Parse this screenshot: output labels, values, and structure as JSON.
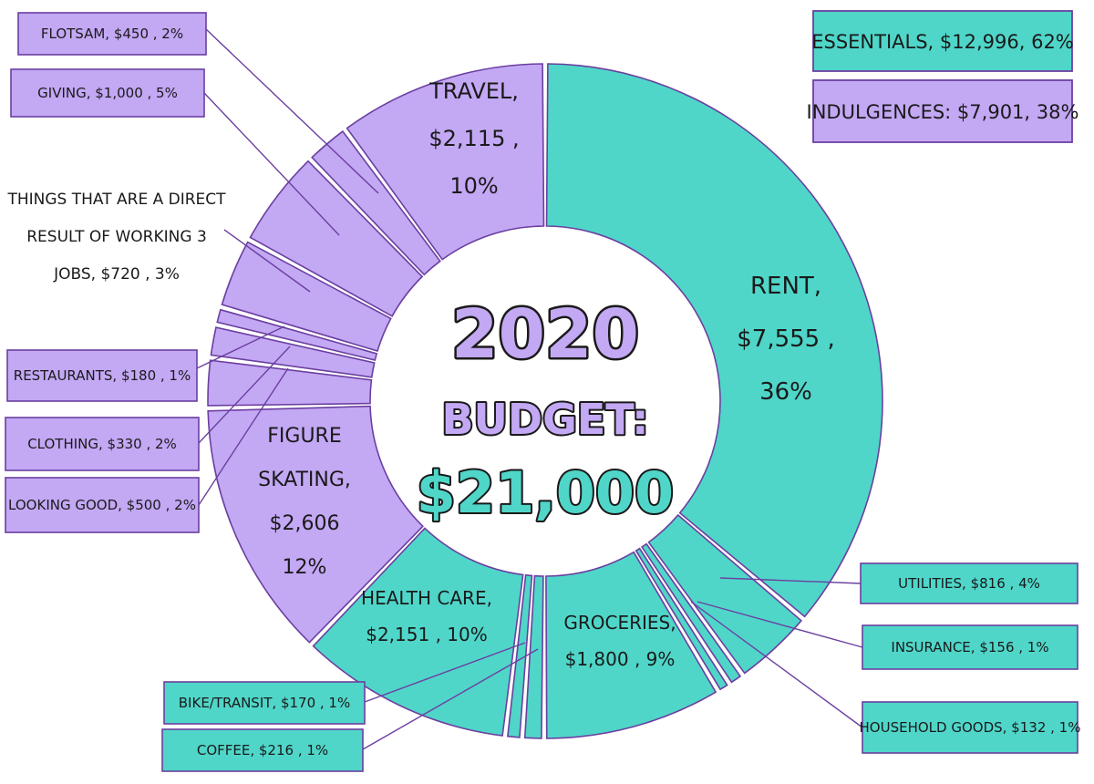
{
  "chart_data": {
    "type": "pie",
    "center_title": {
      "line1": "2020",
      "line2": "BUDGET:",
      "line3": "$21,000"
    },
    "summary": [
      {
        "label": "ESSENTIALS, $12,996, 62%",
        "group": "essentials"
      },
      {
        "label": "INDULGENCES: $7,901, 38%",
        "group": "indulgences"
      }
    ],
    "colors": {
      "essentials": "#4fd6c9",
      "indulgences": "#c3a8f4",
      "outline": "#6b3fa0",
      "text": "#1a1a1a"
    },
    "slices": [
      {
        "name": "RENT",
        "value": 7555,
        "percent": "36%",
        "group": "essentials",
        "label_lines": [
          "RENT,",
          "$7,555 ,",
          "36%"
        ]
      },
      {
        "name": "UTILITIES",
        "value": 816,
        "percent": "4%",
        "group": "essentials",
        "label": "UTILITIES,  $816 , 4%"
      },
      {
        "name": "INSURANCE",
        "value": 156,
        "percent": "1%",
        "group": "essentials",
        "label": "INSURANCE,  $156 , 1%"
      },
      {
        "name": "HOUSEHOLD GOODS",
        "value": 132,
        "percent": "1%",
        "group": "essentials",
        "label": "HOUSEHOLD GOODS,  $132 , 1%"
      },
      {
        "name": "GROCERIES",
        "value": 1800,
        "percent": "9%",
        "group": "essentials",
        "label_lines": [
          "GROCERIES,",
          "$1,800 , 9%"
        ]
      },
      {
        "name": "COFFEE",
        "value": 216,
        "percent": "1%",
        "group": "essentials",
        "label": "COFFEE,  $216 , 1%"
      },
      {
        "name": "BIKE/TRANSIT",
        "value": 170,
        "percent": "1%",
        "group": "essentials",
        "label": "BIKE/TRANSIT,  $170 , 1%"
      },
      {
        "name": "HEALTH CARE",
        "value": 2151,
        "percent": "10%",
        "group": "essentials",
        "label_lines": [
          "HEALTH CARE,",
          "$2,151 , 10%"
        ]
      },
      {
        "name": "FIGURE SKATING",
        "value": 2606,
        "percent": "12%",
        "group": "indulgences",
        "label_lines": [
          "FIGURE",
          "SKATING,",
          "$2,606",
          "12%"
        ]
      },
      {
        "name": "LOOKING GOOD",
        "value": 500,
        "percent": "2%",
        "group": "indulgences",
        "label": "LOOKING GOOD,  $500 , 2%"
      },
      {
        "name": "CLOTHING",
        "value": 330,
        "percent": "2%",
        "group": "indulgences",
        "label": "CLOTHING,  $330 , 2%"
      },
      {
        "name": "RESTAURANTS",
        "value": 180,
        "percent": "1%",
        "group": "indulgences",
        "label": "RESTAURANTS,  $180 , 1%"
      },
      {
        "name": "THINGS THAT ARE A DIRECT RESULT OF WORKING 3 JOBS",
        "value": 720,
        "percent": "3%",
        "group": "indulgences",
        "label_lines": [
          "THINGS THAT ARE A DIRECT",
          "RESULT OF WORKING 3",
          "JOBS,  $720 , 3%"
        ]
      },
      {
        "name": "GIVING",
        "value": 1000,
        "percent": "5%",
        "group": "indulgences",
        "label": "GIVING,  $1,000 , 5%"
      },
      {
        "name": "FLOTSAM",
        "value": 450,
        "percent": "2%",
        "group": "indulgences",
        "label": "FLOTSAM,  $450 , 2%"
      },
      {
        "name": "TRAVEL",
        "value": 2115,
        "percent": "10%",
        "group": "indulgences",
        "label_lines": [
          "TRAVEL,",
          "$2,115 ,",
          "10%"
        ]
      }
    ]
  }
}
